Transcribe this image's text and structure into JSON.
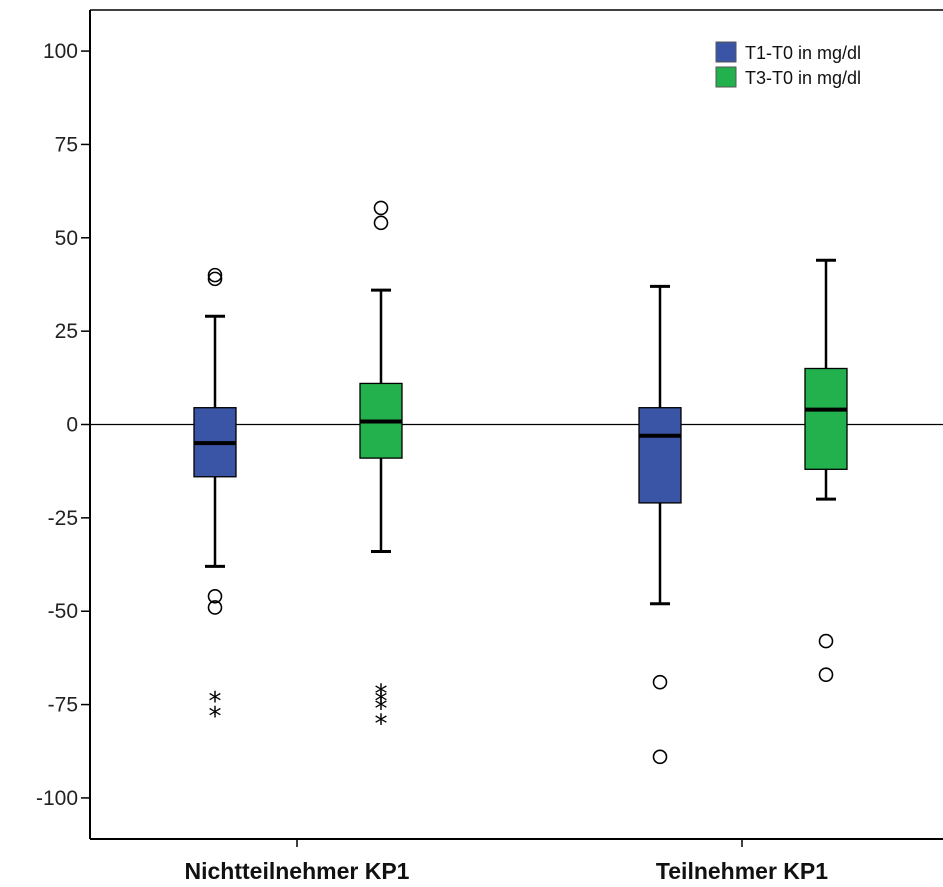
{
  "chart_data": {
    "type": "boxplot",
    "title": "",
    "xlabel": "",
    "ylabel": "",
    "ylim": [
      -111,
      111
    ],
    "yticks": [
      100,
      75,
      50,
      25,
      0,
      -25,
      -50,
      -75,
      -100
    ],
    "ytick_labels": [
      "100",
      "75",
      "50",
      "25",
      "0",
      "-25",
      "-50",
      "-75",
      "-100"
    ],
    "reference_line": 0,
    "categories": [
      "Nichtteilnehmer KP1",
      "Teilnehmer KP1"
    ],
    "legend": {
      "position": "top-right"
    },
    "series": [
      {
        "name": "T1-T0 in mg/dl",
        "color": "#3A55A6",
        "boxes": [
          {
            "whisker_low": -38,
            "q1": -14,
            "median": -5,
            "q3": 4.5,
            "whisker_high": 29,
            "outliers": [
              40,
              39,
              -46,
              -49
            ],
            "extremes": [
              -73,
              -77
            ]
          },
          {
            "whisker_low": -48,
            "q1": -21,
            "median": -3,
            "q3": 4.5,
            "whisker_high": 37,
            "outliers": [
              -69,
              -89
            ],
            "extremes": []
          }
        ]
      },
      {
        "name": "T3-T0 in mg/dl",
        "color": "#22B14C",
        "boxes": [
          {
            "whisker_low": -34,
            "q1": -9,
            "median": 0.8,
            "q3": 11,
            "whisker_high": 36,
            "outliers": [
              58,
              54
            ],
            "extremes": [
              -71,
              -73,
              -75,
              -79
            ]
          },
          {
            "whisker_low": -20,
            "q1": -12,
            "median": 4,
            "q3": 15,
            "whisker_high": 44,
            "outliers": [
              -58,
              -67
            ],
            "extremes": []
          }
        ]
      }
    ]
  }
}
